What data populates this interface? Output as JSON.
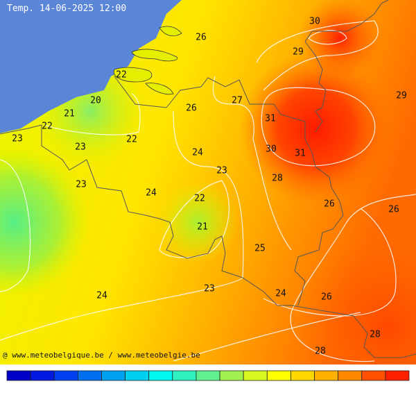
{
  "title": "Temp. 14-06-2025 12:00",
  "contour_labels": [
    30,
    26,
    29,
    22,
    29,
    20,
    27,
    26,
    21,
    31,
    22,
    23,
    22,
    23,
    30,
    24,
    31,
    23,
    28,
    23,
    24,
    22,
    26,
    26,
    21,
    25,
    23,
    24,
    24,
    26,
    28,
    28
  ],
  "credit": "@ www.meteobelgique.be / www.meteobelgie.be"
}
